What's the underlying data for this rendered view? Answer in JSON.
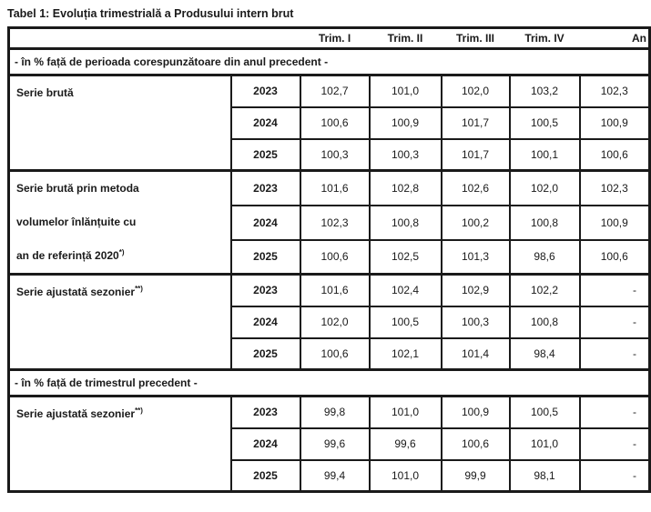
{
  "title": "Tabel 1: Evoluția trimestrială a Produsului intern brut",
  "table": {
    "quarter_headers": [
      "Trim. I",
      "Trim. II",
      "Trim. III",
      "Trim. IV",
      "An"
    ],
    "sections": [
      {
        "section_header": "- în % față de perioada corespunzătoare din anul precedent -",
        "groups": [
          {
            "label_lines": [
              {
                "text": "Serie brută",
                "sup": ""
              }
            ],
            "rows": [
              {
                "year": "2023",
                "values": [
                  "102,7",
                  "101,0",
                  "102,0",
                  "103,2",
                  "102,3"
                ]
              },
              {
                "year": "2024",
                "values": [
                  "100,6",
                  "100,9",
                  "101,7",
                  "100,5",
                  "100,9"
                ]
              },
              {
                "year": "2025",
                "values": [
                  "100,3",
                  "100,3",
                  "101,7",
                  "100,1",
                  "100,6"
                ]
              }
            ]
          },
          {
            "label_lines": [
              {
                "text": "Serie brută prin metoda",
                "sup": ""
              },
              {
                "text": "volumelor înlănțuite cu",
                "sup": ""
              },
              {
                "text": "an de referință 2020",
                "sup": "*)"
              }
            ],
            "rows": [
              {
                "year": "2023",
                "values": [
                  "101,6",
                  "102,8",
                  "102,6",
                  "102,0",
                  "102,3"
                ]
              },
              {
                "year": "2024",
                "values": [
                  "102,3",
                  "100,8",
                  "100,2",
                  "100,8",
                  "100,9"
                ]
              },
              {
                "year": "2025",
                "values": [
                  "100,6",
                  "102,5",
                  "101,3",
                  "98,6",
                  "100,6"
                ]
              }
            ]
          },
          {
            "label_lines": [
              {
                "text": "Serie ajustată sezonier",
                "sup": "**)"
              }
            ],
            "rows": [
              {
                "year": "2023",
                "values": [
                  "101,6",
                  "102,4",
                  "102,9",
                  "102,2",
                  "-"
                ]
              },
              {
                "year": "2024",
                "values": [
                  "102,0",
                  "100,5",
                  "100,3",
                  "100,8",
                  "-"
                ]
              },
              {
                "year": "2025",
                "values": [
                  "100,6",
                  "102,1",
                  "101,4",
                  "98,4",
                  "-"
                ]
              }
            ]
          }
        ]
      },
      {
        "section_header": "- în % față de trimestrul precedent -",
        "groups": [
          {
            "label_lines": [
              {
                "text": "Serie ajustată sezonier",
                "sup": "**)"
              }
            ],
            "rows": [
              {
                "year": "2023",
                "values": [
                  "99,8",
                  "101,0",
                  "100,9",
                  "100,5",
                  "-"
                ]
              },
              {
                "year": "2024",
                "values": [
                  "99,6",
                  "99,6",
                  "100,6",
                  "101,0",
                  "-"
                ]
              },
              {
                "year": "2025",
                "values": [
                  "99,4",
                  "101,0",
                  "99,9",
                  "98,1",
                  "-"
                ]
              }
            ]
          }
        ]
      }
    ]
  },
  "colors": {
    "text": "#1a1a1a",
    "border": "#1a1a1a",
    "background": "#ffffff"
  }
}
